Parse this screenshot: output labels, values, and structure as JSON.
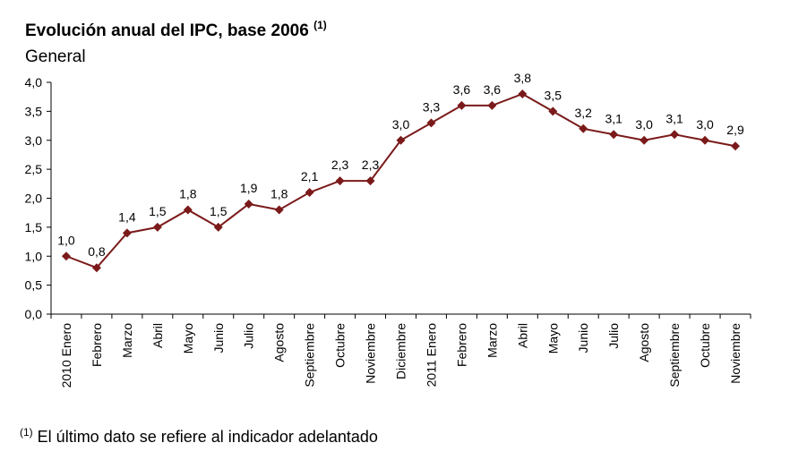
{
  "chart_data": {
    "type": "line",
    "title": "Evolución anual del IPC, base 2006",
    "title_note": "(1)",
    "subtitle": "General",
    "categories": [
      "2010 Enero",
      "Febrero",
      "Marzo",
      "Abril",
      "Mayo",
      "Junio",
      "Julio",
      "Agosto",
      "Septiembre",
      "Octubre",
      "Noviembre",
      "Diciembre",
      "2011 Enero",
      "Febrero",
      "Marzo",
      "Abril",
      "Mayo",
      "Junio",
      "Julio",
      "Agosto",
      "Septiembre",
      "Octubre",
      "Noviembre"
    ],
    "values": [
      1.0,
      0.8,
      1.4,
      1.5,
      1.8,
      1.5,
      1.9,
      1.8,
      2.1,
      2.3,
      2.3,
      3.0,
      3.3,
      3.6,
      3.6,
      3.8,
      3.5,
      3.2,
      3.1,
      3.0,
      3.1,
      3.0,
      2.9
    ],
    "data_labels": [
      "1,0",
      "0,8",
      "1,4",
      "1,5",
      "1,8",
      "1,5",
      "1,9",
      "1,8",
      "2,1",
      "2,3",
      "2,3",
      "3,0",
      "3,3",
      "3,6",
      "3,6",
      "3,8",
      "3,5",
      "3,2",
      "3,1",
      "3,0",
      "3,1",
      "3,0",
      "2,9"
    ],
    "yticks": [
      0,
      0.5,
      1,
      1.5,
      2,
      2.5,
      3,
      3.5,
      4
    ],
    "ytick_labels": [
      "0,0",
      "0,5",
      "1,0",
      "1,5",
      "2,0",
      "2,5",
      "3,0",
      "3,5",
      "4,0"
    ],
    "ylim": [
      0,
      4
    ],
    "grid": false,
    "legend": "none",
    "line_color": "#7b1a1a",
    "marker": "diamond"
  },
  "footnote": {
    "mark": "(1)",
    "text": " El último dato se refiere al indicador adelantado"
  }
}
